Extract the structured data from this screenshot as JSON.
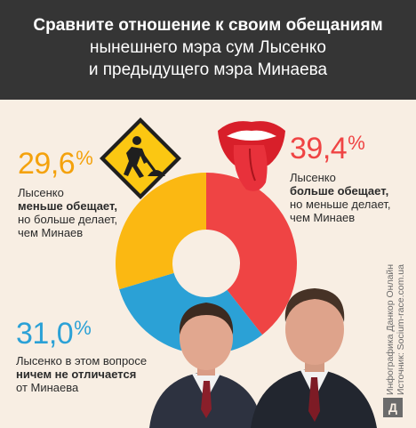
{
  "header": {
    "title_line1": "Сравните отношение к своим обещаниям",
    "title_line2": "нынешнего мэра сум Лысенко",
    "title_line3": "и предыдущего мэра Минаева"
  },
  "chart_data": {
    "type": "pie",
    "donut": true,
    "slices": [
      {
        "label": "Лысенко больше обещает, но меньше делает, чем Минаев",
        "value": 39.4,
        "display": "39,4",
        "color": "#ef4444"
      },
      {
        "label": "Лысенко в этом вопросе ничем не отличается от Минаева",
        "value": 31.0,
        "display": "31,0",
        "color": "#2ba1d6"
      },
      {
        "label": "Лысенко меньше обещает, но больше делает, чем Минаев",
        "value": 29.6,
        "display": "29,6",
        "color": "#fbb812"
      }
    ]
  },
  "stats": {
    "left_top": {
      "value": "29,6",
      "pct": "%",
      "color": "#f4a20d",
      "line1": "Лысенко",
      "line2_bold": "меньше обещает,",
      "line3": "но больше делает,",
      "line4": "чем Минаев"
    },
    "right_top": {
      "value": "39,4",
      "pct": "%",
      "color": "#ef4444",
      "line1": "Лысенко",
      "line2_bold": "больше обещает,",
      "line3": "но меньше делает,",
      "line4": "чем Минаев"
    },
    "left_bottom": {
      "value": "31,0",
      "pct": "%",
      "color": "#2ba1d6",
      "line1": "Лысенко в этом вопросе",
      "line2_bold": "ничем не отличается",
      "line3": "от Минаева"
    }
  },
  "icons": {
    "road_sign": "road-work-sign-icon",
    "tongue": "rolling-stones-tongue-icon",
    "photo_left": "man-portrait-left",
    "photo_right": "man-portrait-right"
  },
  "credit": {
    "line1": "Инфографика Данкор Онлайн",
    "line2": "Источник: Socium-race.com.ua"
  },
  "logo": {
    "letter": "Д"
  }
}
